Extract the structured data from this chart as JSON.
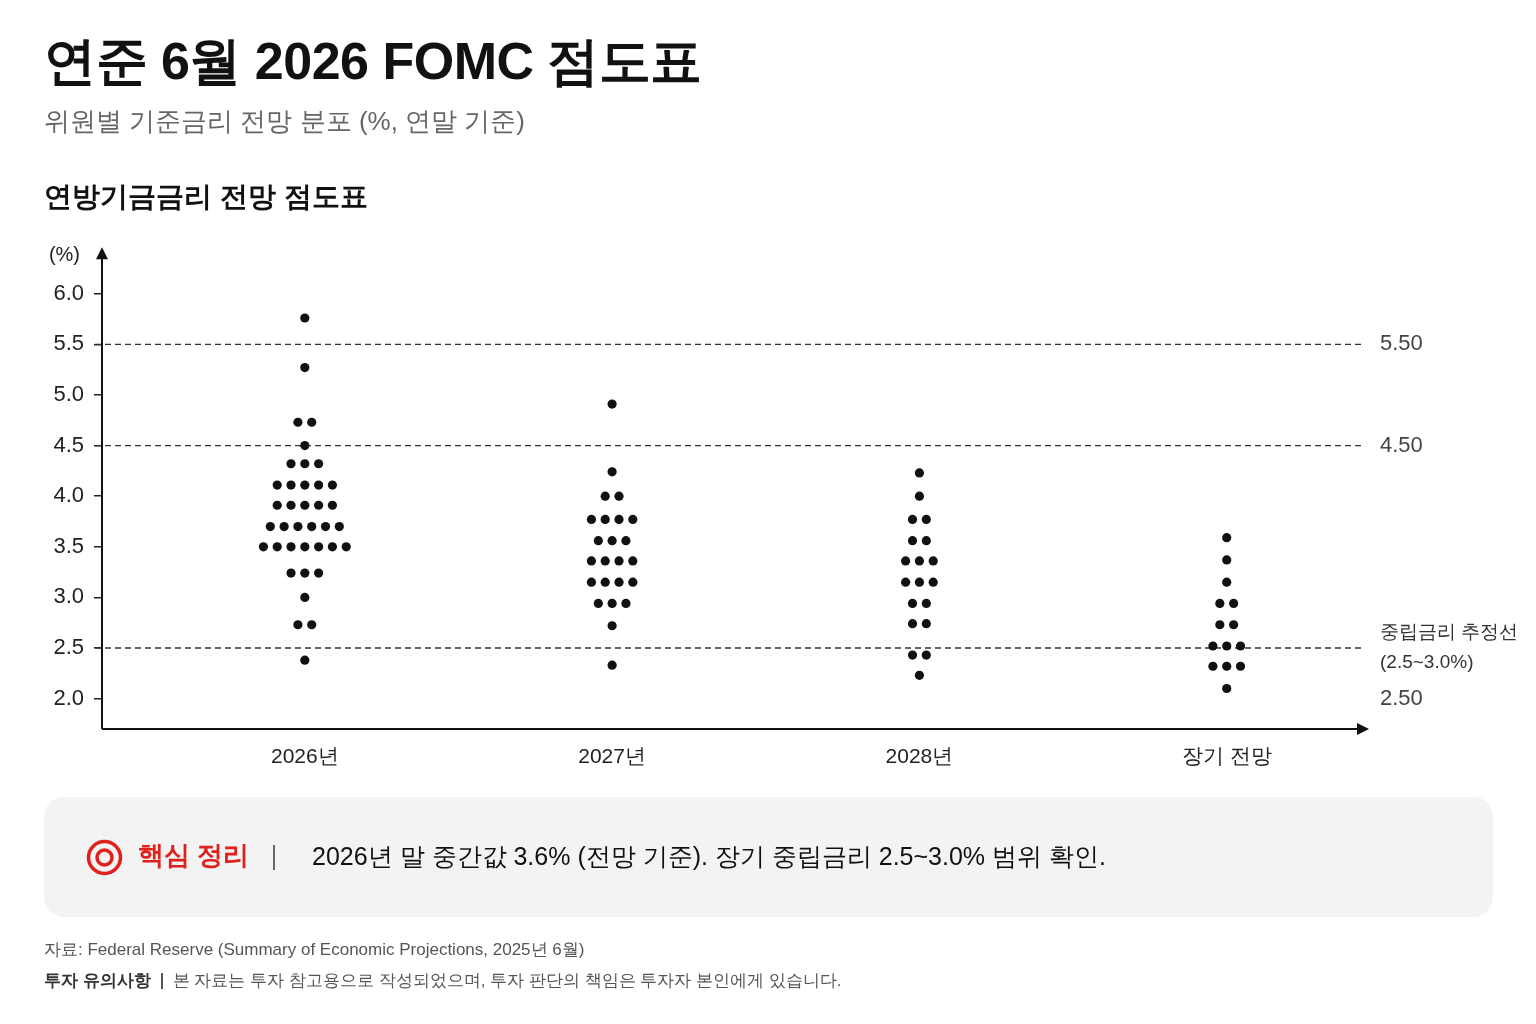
{
  "chart_data": {
    "type": "scatter",
    "title": "연준 6월 2026 FOMC 점도표",
    "subtitle": "위원별 기준금리 전망 분포 (%, 연말 기준)",
    "ylabel": "(%)",
    "categories": [
      "2026년",
      "2027년",
      "2028년",
      "장기 전망"
    ],
    "series": [
      {
        "color": "#111111",
        "x": [
          "2026년",
          "2026년",
          "2026년",
          "2026년",
          "2026년",
          "2026년",
          "2026년",
          "2026년",
          "2026년",
          "2026년",
          "2026년",
          "2026년",
          "2026년",
          "2026년",
          "2026년",
          "2026년",
          "2026년",
          "2026년",
          "2026년",
          "2026년",
          "2026년",
          "2026년",
          "2026년",
          "2026년",
          "2026년",
          "2026년",
          "2026년",
          "2026년",
          "2026년",
          "2026년",
          "2026년",
          "2026년",
          "2026년",
          "2026년",
          "2026년",
          "2026년",
          "2026년",
          "2026년",
          "2027년",
          "2027년",
          "2027년",
          "2027년",
          "2027년",
          "2027년",
          "2027년",
          "2027년",
          "2027년",
          "2027년",
          "2027년",
          "2027년",
          "2027년",
          "2027년",
          "2027년",
          "2027년",
          "2027년",
          "2027년",
          "2027년",
          "2027년",
          "2027년",
          "2027년",
          "2027년",
          "2027년",
          "2028년",
          "2028년",
          "2028년",
          "2028년",
          "2028년",
          "2028년",
          "2028년",
          "2028년",
          "2028년",
          "2028년",
          "2028년",
          "2028년",
          "2028년",
          "2028년",
          "2028년",
          "2028년",
          "2028년",
          "2028년",
          "2028년",
          "장기 전망",
          "장기 전망",
          "장기 전망",
          "장기 전망",
          "장기 전망",
          "장기 전망",
          "장기 전망",
          "장기 전망",
          "장기 전망",
          "장기 전망",
          "장기 전망",
          "장기 전망",
          "장기 전망",
          "장기 전망"
        ],
        "values": [
          5.76,
          5.27,
          4.73,
          4.73,
          4.5,
          4.32,
          4.32,
          4.32,
          4.11,
          4.11,
          4.11,
          4.11,
          4.11,
          3.91,
          3.91,
          3.91,
          3.91,
          3.91,
          3.7,
          3.7,
          3.7,
          3.7,
          3.7,
          3.7,
          3.5,
          3.5,
          3.5,
          3.5,
          3.5,
          3.5,
          3.5,
          3.24,
          3.24,
          3.24,
          3.0,
          2.73,
          2.73,
          2.38,
          4.91,
          4.24,
          4.0,
          4.0,
          3.77,
          3.77,
          3.77,
          3.77,
          3.56,
          3.56,
          3.56,
          3.36,
          3.36,
          3.36,
          3.36,
          3.15,
          3.15,
          3.15,
          3.15,
          2.94,
          2.94,
          2.94,
          2.72,
          2.33,
          4.23,
          4.0,
          3.77,
          3.77,
          3.56,
          3.56,
          3.36,
          3.36,
          3.36,
          3.15,
          3.15,
          3.15,
          2.94,
          2.94,
          2.74,
          2.74,
          2.43,
          2.43,
          2.23,
          3.59,
          3.37,
          3.15,
          2.94,
          2.94,
          2.73,
          2.73,
          2.52,
          2.52,
          2.52,
          2.32,
          2.32,
          2.32,
          2.1
        ]
      }
    ],
    "ylim": [
      1.7,
      6.4
    ],
    "yticks": [
      {
        "value": 2,
        "label": "2.0"
      },
      2.5,
      {
        "value": 3,
        "label": "3.0"
      },
      3.5,
      {
        "value": 4,
        "label": "4.0"
      },
      4.5,
      {
        "value": 5,
        "label": "5.0"
      },
      5.5,
      {
        "value": 6,
        "label": "6.0"
      }
    ],
    "marker": "circle",
    "ref_lines": [
      {
        "axis": "y",
        "value": 5.5,
        "label": "5.50",
        "color": "#333333",
        "line_style": "dashed"
      },
      {
        "axis": "y",
        "value": 4.5,
        "label": "4.50",
        "color": "#333333",
        "line_style": "dashed"
      },
      {
        "axis": "y",
        "value": 2.5,
        "label": "2.50",
        "color": "#333333",
        "line_style": "dashed"
      }
    ],
    "annotations": [
      "연방기금금리 전망 점도표",
      "중립금리 추정선\n(2.5~3.0%)",
      "핵심 정리",
      "2026년 말 중간값 3.6% (전망 기준). 장기 중립금리 2.5~3.0% 범위 확인.",
      "자료: Federal Reserve (Summary of Economic Projections, 2025년 6월)",
      "투자 유의사항",
      "본 자료는 투자 참고용으로 작성되었으며, 투자 판단의 책임은 투자자 본인에게 있습니다."
    ]
  }
}
